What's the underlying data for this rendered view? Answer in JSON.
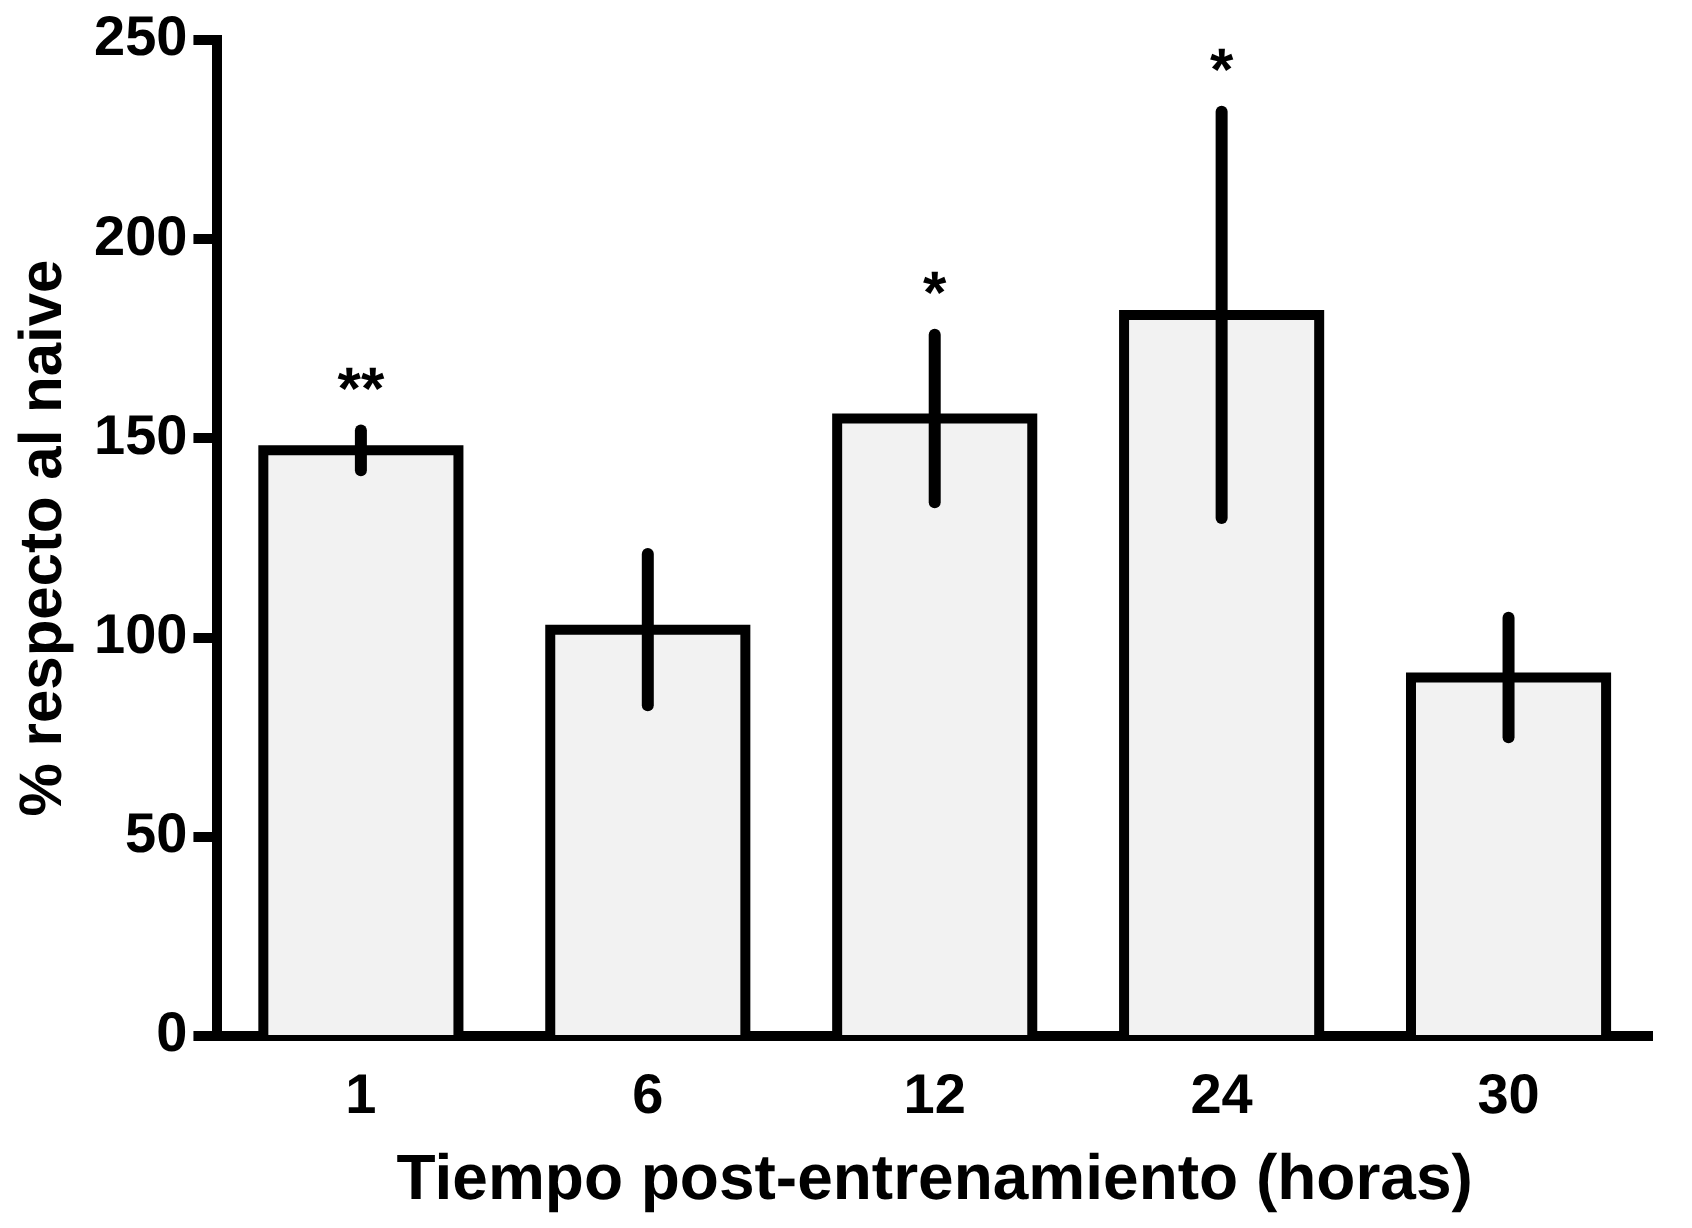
{
  "chart_data": {
    "type": "bar",
    "xlabel": "Tiempo post-entrenamiento (horas)",
    "ylabel": "% respecto al naive",
    "categories": [
      "1",
      "6",
      "12",
      "24",
      "30"
    ],
    "values": [
      147,
      102,
      155,
      181,
      90
    ],
    "errors": [
      5,
      19,
      21,
      51,
      15
    ],
    "color": "#f2f2f2",
    "ylim": [
      0,
      250
    ],
    "yticks": [
      0,
      50,
      100,
      150,
      200,
      250
    ],
    "grid": false,
    "legend": false,
    "annotations": [
      {
        "text": "**",
        "x": "1",
        "y": 152
      },
      {
        "text": "*",
        "x": "12",
        "y": 176
      },
      {
        "text": "*",
        "x": "24",
        "y": 232
      }
    ]
  }
}
